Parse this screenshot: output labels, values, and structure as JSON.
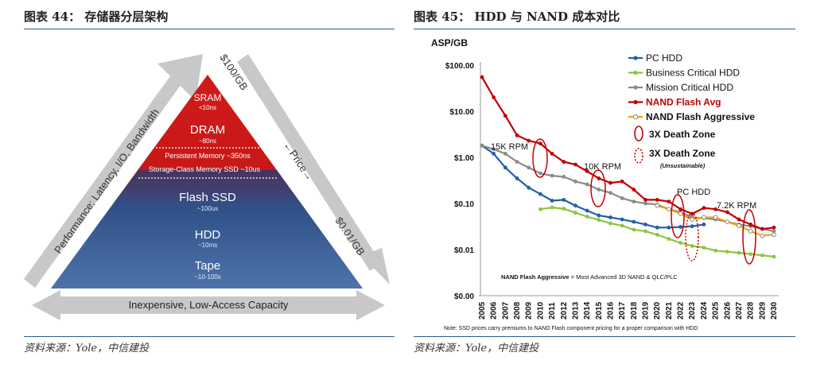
{
  "left": {
    "figure_title": "图表 44：  存储器分层架构",
    "source": "资料来源：Yole，中信建投",
    "tiers": [
      {
        "name": "SRAM",
        "latency": "<10ns"
      },
      {
        "name": "DRAM",
        "latency": "~80ns"
      },
      {
        "name": "Persistent Memory ~350ns",
        "latency": ""
      },
      {
        "name": "Storage-Class Memory SSD ~10us",
        "latency": ""
      },
      {
        "name": "Flash SSD",
        "latency": "~100us"
      },
      {
        "name": "HDD",
        "latency": "~10ms"
      },
      {
        "name": "Tape",
        "latency": "~10-100s"
      }
    ],
    "arrow_left": "Performance: Latency, I/O, Bandwidth",
    "arrow_right_top": "$100/GB",
    "arrow_right_mid": "←Price→",
    "arrow_right_bottom": "$0.01/GB",
    "arrow_bottom": "Inexpensive, Low-Access Capacity",
    "colors": {
      "top": "#cc1111",
      "bottom": "#1e3d75",
      "arrow": "#c8c8c8"
    }
  },
  "right": {
    "figure_title": "图表 45：  HDD 与 NAND 成本对比",
    "source": "资料来源：Yole，中信建投",
    "note": "Note: SSD prices carry premiums to NAND Flash component pricing for a proper comparison with HDD",
    "footnote_bold": "NAND Flash Aggressive",
    "footnote_rest": " = Most Advanced 3D NAND & QLC/PLC",
    "death_zone_label": "3X Death Zone",
    "death_zone_label2": "3X Death Zone",
    "death_zone_sub": "(Unsustainable)",
    "annotations": [
      "15K RPM",
      "10K RPM",
      "PC HDD",
      "7.2K RPM"
    ]
  },
  "chart_data": {
    "type": "line",
    "title": "",
    "ylabel": "ASP/GB",
    "xlabel": "",
    "y_scale": "log",
    "ylim": [
      0.001,
      100
    ],
    "yticks": [
      100,
      10,
      1,
      0.1,
      0.01,
      0.001
    ],
    "ytick_labels": [
      "$100.00",
      "$10.00",
      "$1.00",
      "$0.10",
      "$0.01",
      "$0.00"
    ],
    "x": [
      2005,
      2006,
      2007,
      2008,
      2009,
      2010,
      2011,
      2012,
      2013,
      2014,
      2015,
      2016,
      2017,
      2018,
      2019,
      2020,
      2021,
      2022,
      2023,
      2024,
      2025,
      2026,
      2027,
      2028,
      2029,
      2030
    ],
    "legend_position": "top",
    "series": [
      {
        "name": "PC HDD",
        "color": "#1f5fa8",
        "marker": "dot",
        "values": [
          1.8,
          1.2,
          0.6,
          0.35,
          0.22,
          0.16,
          0.115,
          0.12,
          0.09,
          0.07,
          0.055,
          0.05,
          0.045,
          0.04,
          0.035,
          0.03,
          0.03,
          0.031,
          0.032,
          0.035,
          null,
          null,
          null,
          null,
          null,
          null
        ]
      },
      {
        "name": "Business Critical HDD",
        "color": "#8cc63f",
        "marker": "dot",
        "values": [
          null,
          null,
          null,
          null,
          null,
          0.075,
          0.082,
          0.077,
          0.063,
          0.052,
          0.044,
          0.037,
          0.033,
          0.027,
          0.025,
          0.021,
          0.017,
          0.014,
          0.012,
          0.011,
          0.0095,
          0.009,
          0.0085,
          0.008,
          0.0075,
          0.007
        ]
      },
      {
        "name": "Mission Critical HDD",
        "color": "#8a8a8a",
        "marker": "dot",
        "values": [
          1.8,
          1.5,
          1.2,
          0.8,
          0.6,
          0.45,
          0.4,
          0.38,
          0.3,
          0.26,
          0.2,
          0.17,
          0.13,
          0.11,
          0.1,
          0.095,
          0.075,
          0.065,
          0.05,
          0.048,
          0.045,
          0.04,
          0.035,
          0.032,
          0.028,
          0.025
        ]
      },
      {
        "name": "NAND Flash Avg",
        "color": "#c00000",
        "marker": "dot",
        "values": [
          55,
          20,
          8,
          3,
          2.3,
          2.0,
          1.2,
          0.8,
          0.7,
          0.5,
          0.35,
          0.28,
          0.3,
          0.2,
          0.12,
          0.12,
          0.11,
          0.075,
          0.06,
          0.08,
          0.075,
          0.065,
          0.045,
          0.035,
          0.028,
          0.03
        ]
      },
      {
        "name": "NAND Flash Aggressive",
        "color": "#f2a500",
        "marker": "hollow",
        "values": [
          null,
          null,
          null,
          null,
          null,
          null,
          null,
          null,
          null,
          null,
          null,
          null,
          null,
          null,
          null,
          0.09,
          0.075,
          0.06,
          0.045,
          0.05,
          0.05,
          0.04,
          0.033,
          0.025,
          0.02,
          0.021
        ]
      }
    ]
  }
}
